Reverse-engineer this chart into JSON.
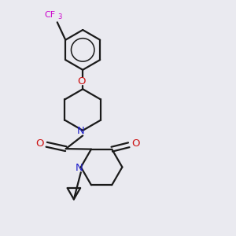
{
  "bg_color": "#eaeaf0",
  "bond_color": "#1a1a1a",
  "N_color": "#2222cc",
  "O_color": "#cc1111",
  "F_color": "#cc00cc",
  "line_width": 1.6,
  "fig_size": [
    3.0,
    3.0
  ],
  "dpi": 100,
  "xlim": [
    0,
    10
  ],
  "ylim": [
    0,
    10
  ]
}
